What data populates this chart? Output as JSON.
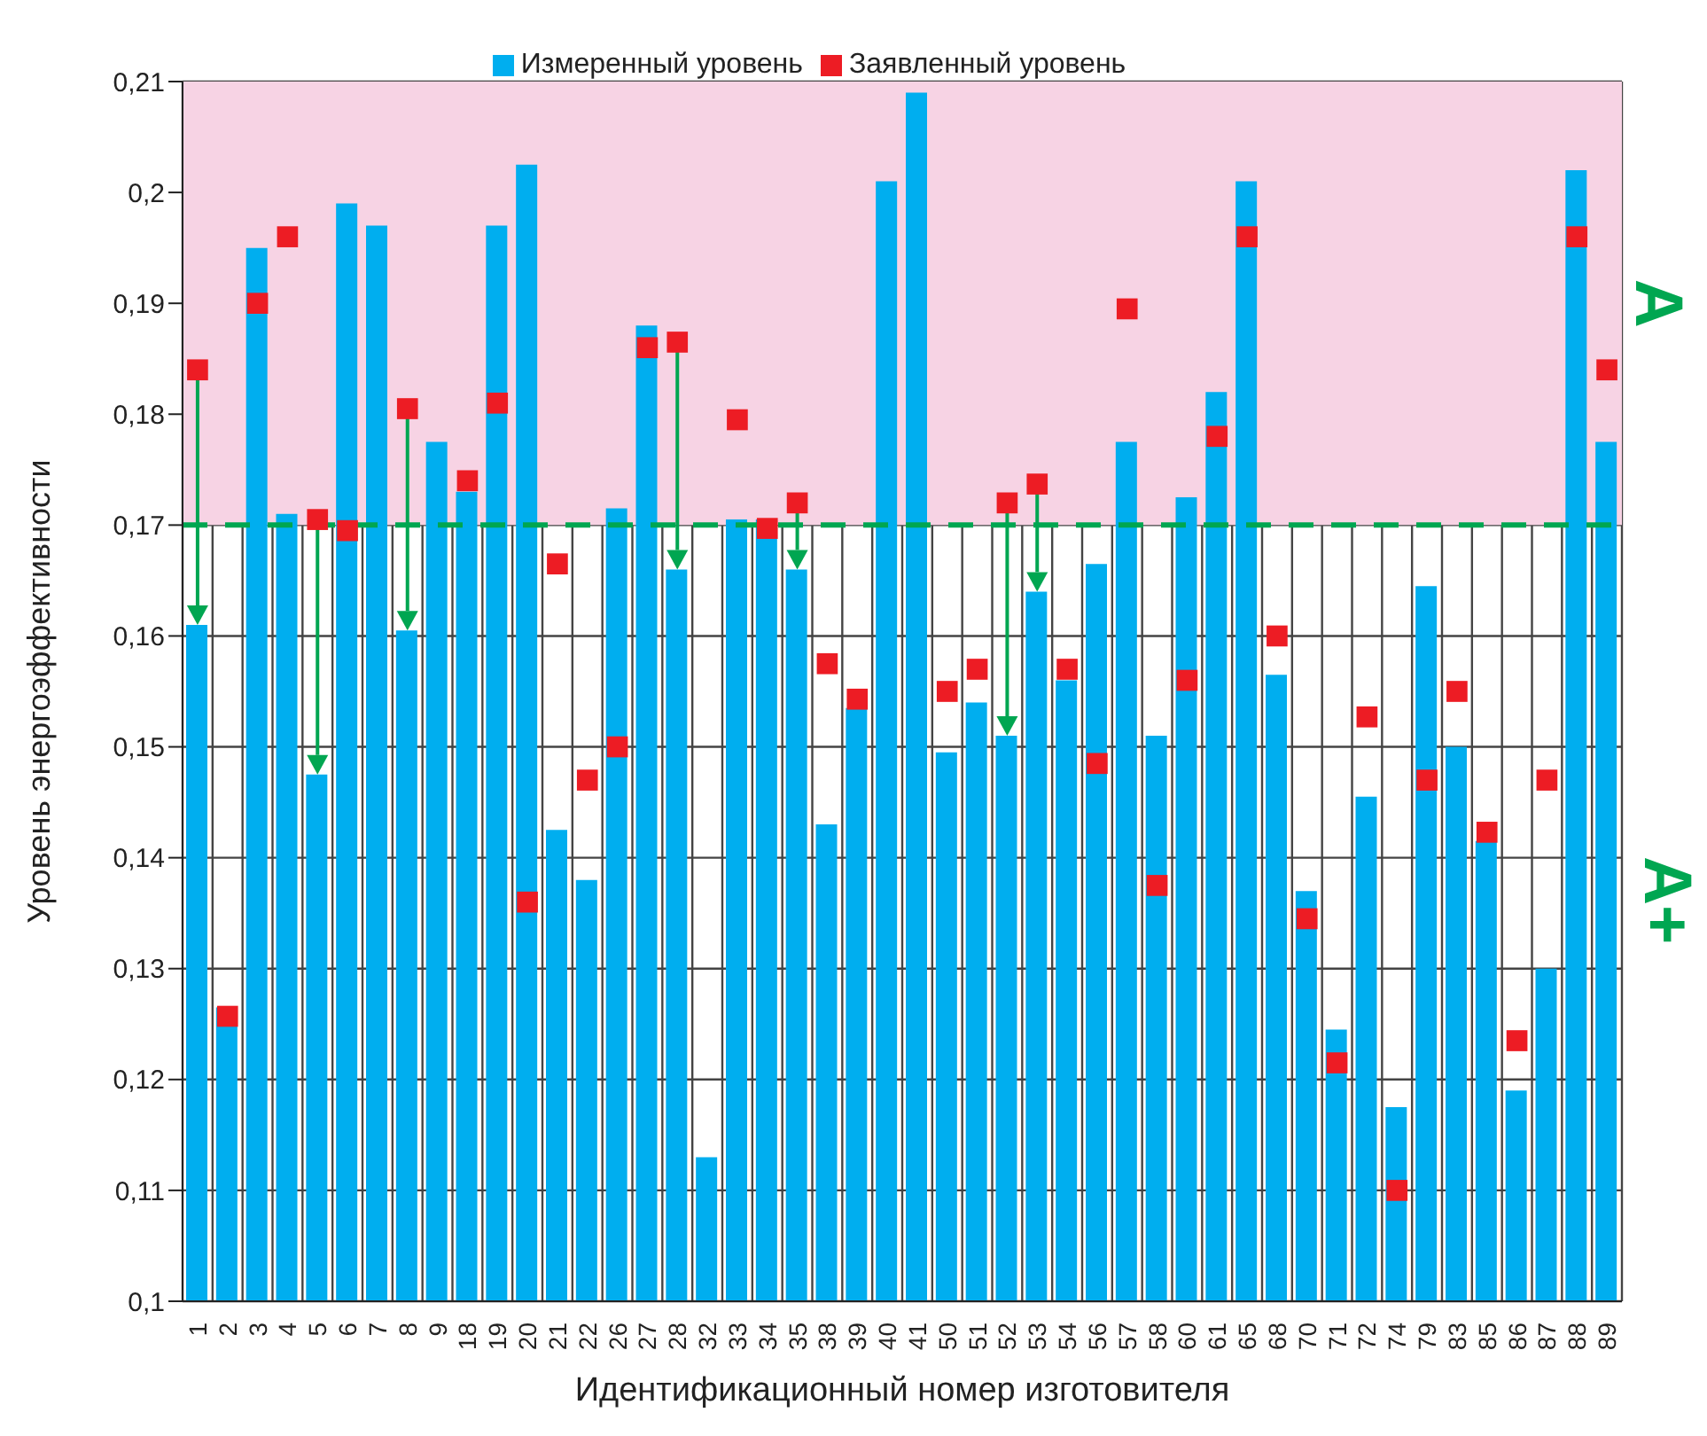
{
  "chart_data": {
    "type": "bar",
    "xlabel": "Идентификационный номер изготовителя",
    "ylabel": "Уровень энергоэффективности",
    "categories": [
      "1",
      "2",
      "3",
      "4",
      "5",
      "6",
      "7",
      "8",
      "9",
      "18",
      "19",
      "20",
      "21",
      "22",
      "26",
      "27",
      "28",
      "32",
      "33",
      "34",
      "35",
      "38",
      "39",
      "40",
      "41",
      "50",
      "51",
      "52",
      "53",
      "54",
      "56",
      "57",
      "58",
      "60",
      "61",
      "65",
      "68",
      "70",
      "71",
      "72",
      "74",
      "79",
      "83",
      "85",
      "86",
      "87",
      "88",
      "89"
    ],
    "series": [
      {
        "name": "Измеренный уровень",
        "color": "#00aeef",
        "values": [
          0.161,
          0.1265,
          0.195,
          0.171,
          0.1475,
          0.199,
          0.197,
          0.1605,
          0.1775,
          0.173,
          0.197,
          0.2025,
          0.1425,
          0.138,
          0.1715,
          0.188,
          0.166,
          0.113,
          0.1705,
          0.1705,
          0.166,
          0.143,
          0.1535,
          0.201,
          0.209,
          0.1495,
          0.154,
          0.151,
          0.164,
          0.156,
          0.1665,
          0.1775,
          0.151,
          0.1725,
          0.182,
          0.201,
          0.1565,
          0.137,
          0.1245,
          0.1455,
          0.1175,
          0.1645,
          0.15,
          0.1415,
          0.119,
          0.13,
          0.202,
          0.1775
        ]
      },
      {
        "name": "Заявленный уровень",
        "type": "scatter",
        "color": "#ed1c24",
        "values": [
          0.184,
          0.1257,
          0.19,
          0.196,
          0.1705,
          0.1695,
          null,
          0.1805,
          null,
          0.174,
          0.181,
          0.136,
          0.1665,
          0.147,
          0.15,
          0.186,
          0.1865,
          null,
          0.1795,
          0.1697,
          0.172,
          0.1575,
          0.1543,
          null,
          null,
          0.155,
          0.157,
          0.172,
          0.1737,
          0.157,
          0.1485,
          0.1895,
          0.1375,
          0.156,
          0.178,
          0.196,
          0.16,
          0.1345,
          0.1215,
          0.1527,
          0.11,
          0.147,
          0.155,
          0.1423,
          0.1235,
          0.147,
          0.196,
          0.184
        ]
      }
    ],
    "ylim": [
      0.1,
      0.21
    ],
    "yticks": [
      {
        "value": 0.1,
        "label": "0,1"
      },
      {
        "value": 0.11,
        "label": "0,11"
      },
      {
        "value": 0.12,
        "label": "0,12"
      },
      {
        "value": 0.13,
        "label": "0,13"
      },
      {
        "value": 0.14,
        "label": "0,14"
      },
      {
        "value": 0.15,
        "label": "0,15"
      },
      {
        "value": 0.16,
        "label": "0,16"
      },
      {
        "value": 0.17,
        "label": "0,17"
      },
      {
        "value": 0.18,
        "label": "0,18"
      },
      {
        "value": 0.19,
        "label": "0,19"
      },
      {
        "value": 0.2,
        "label": "0,2"
      },
      {
        "value": 0.21,
        "label": "0,21"
      }
    ],
    "ref_lines": [
      {
        "axis": "y",
        "value": 0.17,
        "color": "#00a651",
        "line_style": "dashed"
      }
    ],
    "bands": [
      {
        "axis": "y",
        "from": 0.17,
        "to": 0.21,
        "label": "A",
        "color": "#f7d3e4"
      }
    ],
    "annotations": [
      "A+"
    ],
    "grid": true,
    "legend": "top",
    "marker": "square"
  }
}
